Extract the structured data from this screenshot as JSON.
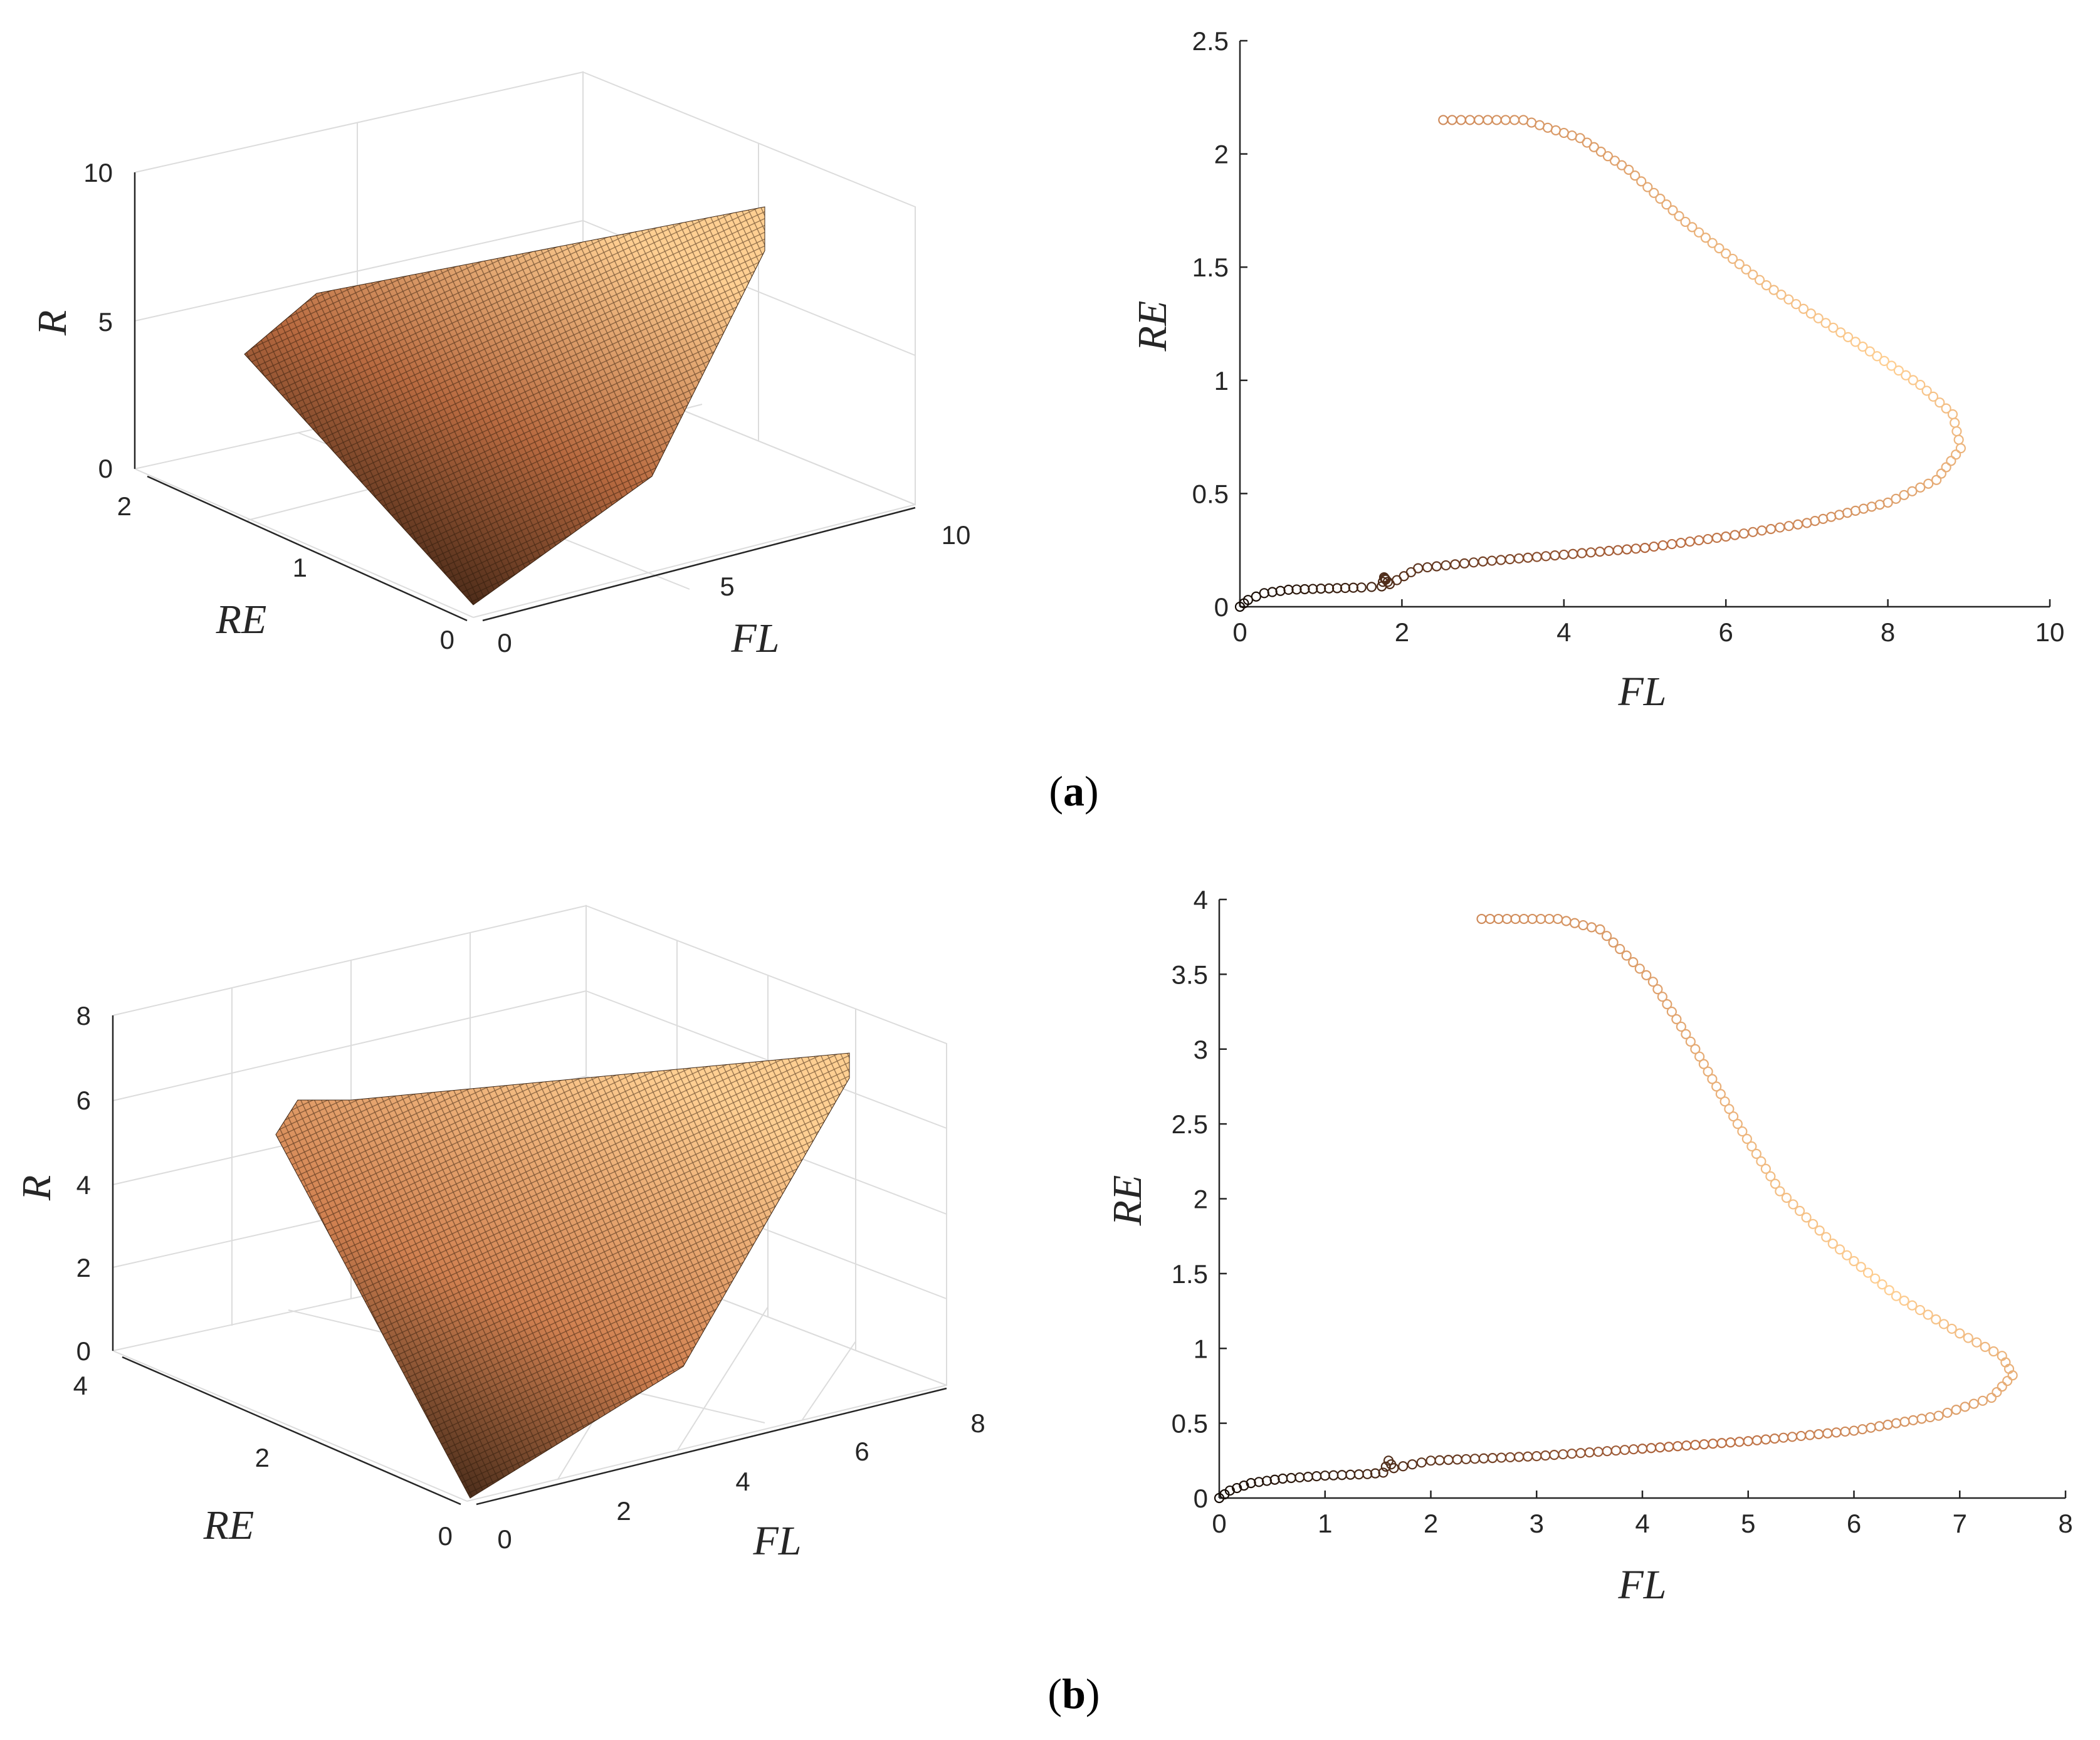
{
  "figure": {
    "captions": [
      {
        "label": "a"
      },
      {
        "label": "b"
      }
    ]
  },
  "colors": {
    "dark": "#140b05",
    "mid": "#b86a40",
    "light": "#ffcf92",
    "axis": "#262626",
    "grid": "#dcdcdc"
  },
  "chart_data": [
    {
      "id": "a-surface",
      "type": "surface",
      "title": "",
      "xlabel": "FL",
      "ylabel": "RE",
      "zlabel": "R",
      "xlim": [
        0,
        10
      ],
      "ylim": [
        0,
        2.2
      ],
      "zlim": [
        0,
        10
      ],
      "xticks": [
        "0",
        "5",
        "10"
      ],
      "yticks": [
        "0",
        "1",
        "2"
      ],
      "zticks": [
        "0",
        "5",
        "10"
      ],
      "grid": true,
      "vertices": [
        {
          "name": "apex",
          "FL": 0.15,
          "RE": 0.05,
          "R": 0.2
        },
        {
          "name": "left",
          "FL": 1.5,
          "RE": 2.1,
          "R": 5.0
        },
        {
          "name": "top-left",
          "FL": 3.2,
          "RE": 2.15,
          "R": 6.2
        },
        {
          "name": "top-right",
          "FL": 9.0,
          "RE": 0.8,
          "R": 8.6
        }
      ],
      "colormap": "copper"
    },
    {
      "id": "a-scatter",
      "type": "scatter",
      "title": "",
      "xlabel": "FL",
      "ylabel": "RE",
      "xlim": [
        0,
        10
      ],
      "ylim": [
        0,
        2.5
      ],
      "xticks": [
        "0",
        "2",
        "4",
        "6",
        "8",
        "10"
      ],
      "yticks": [
        "0",
        "0.5",
        "1",
        "1.5",
        "2",
        "2.5"
      ],
      "grid": false,
      "curve_points": [
        {
          "x": 0.0,
          "y": 0.0
        },
        {
          "x": 0.1,
          "y": 0.03
        },
        {
          "x": 0.3,
          "y": 0.06
        },
        {
          "x": 0.6,
          "y": 0.075
        },
        {
          "x": 1.0,
          "y": 0.08
        },
        {
          "x": 1.5,
          "y": 0.085
        },
        {
          "x": 1.75,
          "y": 0.09
        },
        {
          "x": 1.78,
          "y": 0.13
        },
        {
          "x": 1.8,
          "y": 0.12
        },
        {
          "x": 1.85,
          "y": 0.1
        },
        {
          "x": 2.2,
          "y": 0.17
        },
        {
          "x": 3.0,
          "y": 0.2
        },
        {
          "x": 4.0,
          "y": 0.23
        },
        {
          "x": 5.0,
          "y": 0.26
        },
        {
          "x": 6.0,
          "y": 0.31
        },
        {
          "x": 7.0,
          "y": 0.37
        },
        {
          "x": 8.0,
          "y": 0.46
        },
        {
          "x": 8.6,
          "y": 0.56
        },
        {
          "x": 8.9,
          "y": 0.7
        },
        {
          "x": 8.8,
          "y": 0.85
        },
        {
          "x": 8.4,
          "y": 0.98
        },
        {
          "x": 7.6,
          "y": 1.17
        },
        {
          "x": 6.5,
          "y": 1.42
        },
        {
          "x": 5.5,
          "y": 1.7
        },
        {
          "x": 4.8,
          "y": 1.93
        },
        {
          "x": 4.2,
          "y": 2.07
        },
        {
          "x": 3.5,
          "y": 2.15
        },
        {
          "x": 2.4,
          "y": 2.15
        }
      ]
    },
    {
      "id": "b-surface",
      "type": "surface",
      "title": "",
      "xlabel": "FL",
      "ylabel": "RE",
      "zlabel": "R",
      "xlim": [
        0,
        8
      ],
      "ylim": [
        0,
        4
      ],
      "zlim": [
        0,
        8
      ],
      "xticks": [
        "0",
        "2",
        "4",
        "6",
        "8"
      ],
      "yticks": [
        "0",
        "2",
        "4"
      ],
      "zticks": [
        "0",
        "2",
        "4",
        "6",
        "8"
      ],
      "grid": true,
      "vertices": [
        {
          "name": "apex",
          "FL": 0.2,
          "RE": 0.1,
          "R": 0.3
        },
        {
          "name": "left",
          "FL": 0.9,
          "RE": 3.9,
          "R": 5.0
        },
        {
          "name": "top-left",
          "FL": 2.6,
          "RE": 3.9,
          "R": 5.6
        },
        {
          "name": "top-right",
          "FL": 7.5,
          "RE": 0.9,
          "R": 6.5
        }
      ],
      "colormap": "copper"
    },
    {
      "id": "b-scatter",
      "type": "scatter",
      "title": "",
      "xlabel": "FL",
      "ylabel": "RE",
      "xlim": [
        0,
        8
      ],
      "ylim": [
        0,
        4
      ],
      "xticks": [
        "0",
        "1",
        "2",
        "3",
        "4",
        "5",
        "6",
        "7",
        "8"
      ],
      "yticks": [
        "0",
        "0.5",
        "1",
        "1.5",
        "2",
        "2.5",
        "3",
        "3.5",
        "4"
      ],
      "grid": false,
      "curve_points": [
        {
          "x": 0.0,
          "y": 0.0
        },
        {
          "x": 0.1,
          "y": 0.05
        },
        {
          "x": 0.3,
          "y": 0.1
        },
        {
          "x": 0.6,
          "y": 0.13
        },
        {
          "x": 1.0,
          "y": 0.15
        },
        {
          "x": 1.4,
          "y": 0.16
        },
        {
          "x": 1.55,
          "y": 0.17
        },
        {
          "x": 1.6,
          "y": 0.25
        },
        {
          "x": 1.65,
          "y": 0.2
        },
        {
          "x": 2.0,
          "y": 0.25
        },
        {
          "x": 3.0,
          "y": 0.28
        },
        {
          "x": 4.0,
          "y": 0.33
        },
        {
          "x": 5.0,
          "y": 0.38
        },
        {
          "x": 6.0,
          "y": 0.45
        },
        {
          "x": 6.8,
          "y": 0.55
        },
        {
          "x": 7.3,
          "y": 0.67
        },
        {
          "x": 7.5,
          "y": 0.82
        },
        {
          "x": 7.4,
          "y": 0.95
        },
        {
          "x": 7.0,
          "y": 1.1
        },
        {
          "x": 6.4,
          "y": 1.35
        },
        {
          "x": 5.8,
          "y": 1.7
        },
        {
          "x": 5.3,
          "y": 2.05
        },
        {
          "x": 4.9,
          "y": 2.5
        },
        {
          "x": 4.5,
          "y": 3.0
        },
        {
          "x": 4.1,
          "y": 3.45
        },
        {
          "x": 3.6,
          "y": 3.8
        },
        {
          "x": 3.2,
          "y": 3.87
        },
        {
          "x": 2.4,
          "y": 3.87
        }
      ]
    }
  ]
}
